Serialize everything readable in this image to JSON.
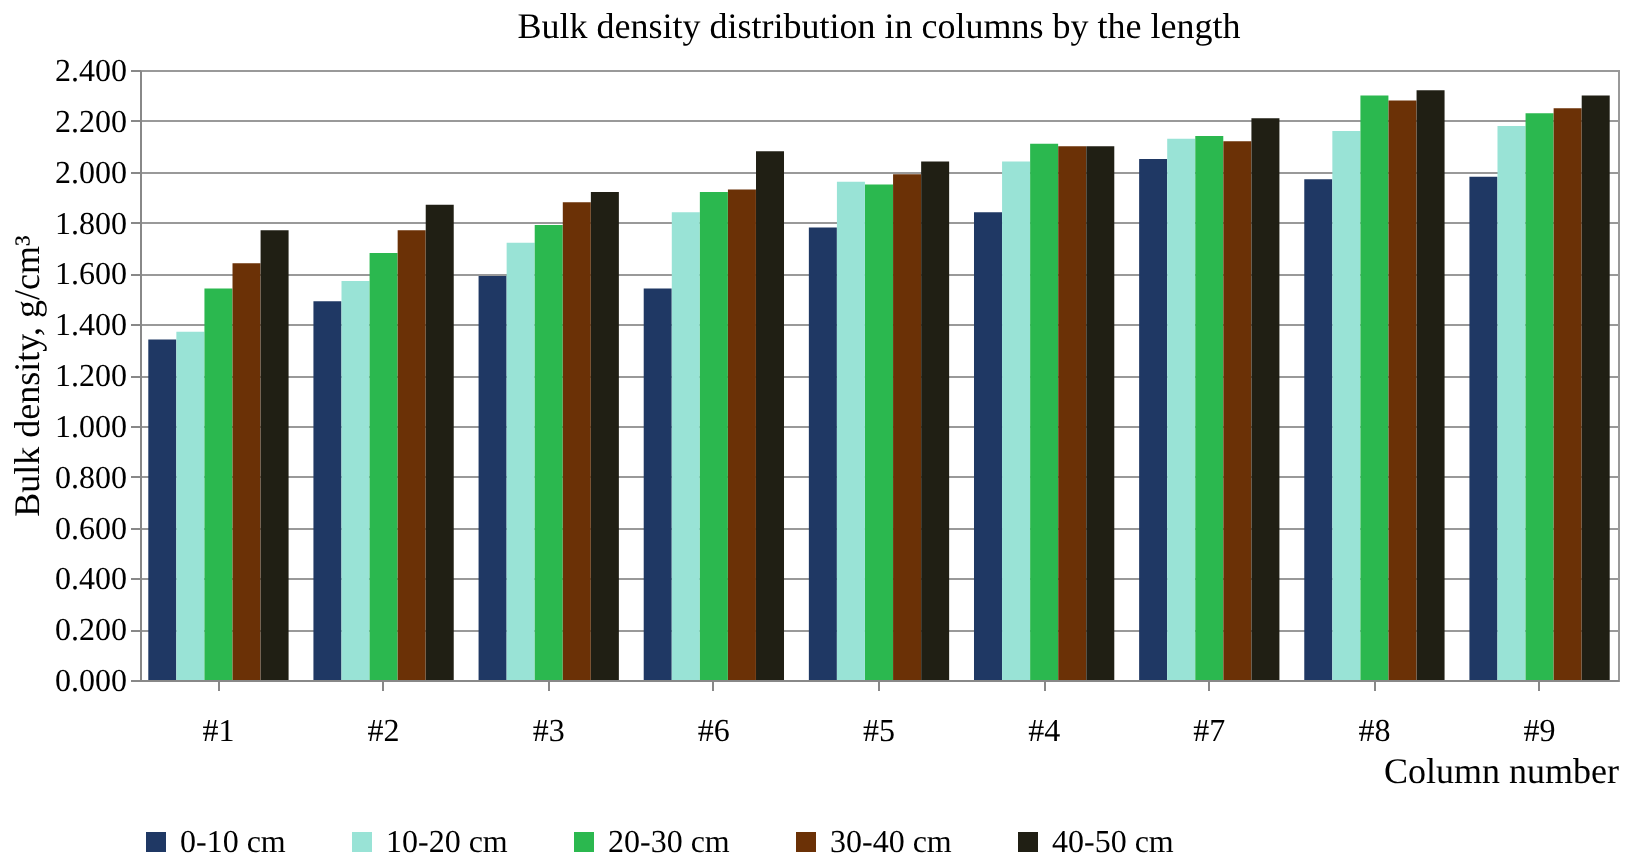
{
  "chart_data": {
    "type": "bar",
    "title": "Bulk density distribution in columns by the length",
    "xlabel": "Column number",
    "ylabel": "Bulk density, g/cm³",
    "categories": [
      "#1",
      "#2",
      "#3",
      "#6",
      "#5",
      "#4",
      "#7",
      "#8",
      "#9"
    ],
    "series": [
      {
        "name": "0-10 cm",
        "color": "#1f3864",
        "values": [
          1.34,
          1.49,
          1.59,
          1.54,
          1.78,
          1.84,
          2.05,
          1.97,
          1.98
        ]
      },
      {
        "name": "10-20 cm",
        "color": "#99e3d6",
        "values": [
          1.37,
          1.57,
          1.72,
          1.84,
          1.96,
          2.04,
          2.13,
          2.16,
          2.18
        ]
      },
      {
        "name": "20-30 cm",
        "color": "#2bb84f",
        "values": [
          1.54,
          1.68,
          1.79,
          1.92,
          1.95,
          2.11,
          2.14,
          2.3,
          2.23
        ]
      },
      {
        "name": "30-40 cm",
        "color": "#6b3106",
        "values": [
          1.64,
          1.77,
          1.88,
          1.93,
          1.99,
          2.1,
          2.12,
          2.28,
          2.25
        ]
      },
      {
        "name": "40-50 cm",
        "color": "#201f14",
        "values": [
          1.77,
          1.87,
          1.92,
          2.08,
          2.04,
          2.1,
          2.21,
          2.32,
          2.3
        ]
      }
    ],
    "ylim": [
      0,
      2.4
    ],
    "yticks": [
      {
        "value": 0,
        "label": "0.000"
      },
      {
        "value": 0.2,
        "label": "0.200"
      },
      {
        "value": 0.4,
        "label": "0.400"
      },
      {
        "value": 0.6,
        "label": "0.600"
      },
      {
        "value": 0.8,
        "label": "0.800"
      },
      {
        "value": 1.0,
        "label": "1.000"
      },
      {
        "value": 1.2,
        "label": "1.200"
      },
      {
        "value": 1.4,
        "label": "1.400"
      },
      {
        "value": 1.6,
        "label": "1.600"
      },
      {
        "value": 1.8,
        "label": "1.800"
      },
      {
        "value": 2.0,
        "label": "2.000"
      },
      {
        "value": 2.2,
        "label": "2.200"
      },
      {
        "value": 2.4,
        "label": "2.400"
      }
    ],
    "grid": "y",
    "legend": "bottom"
  }
}
